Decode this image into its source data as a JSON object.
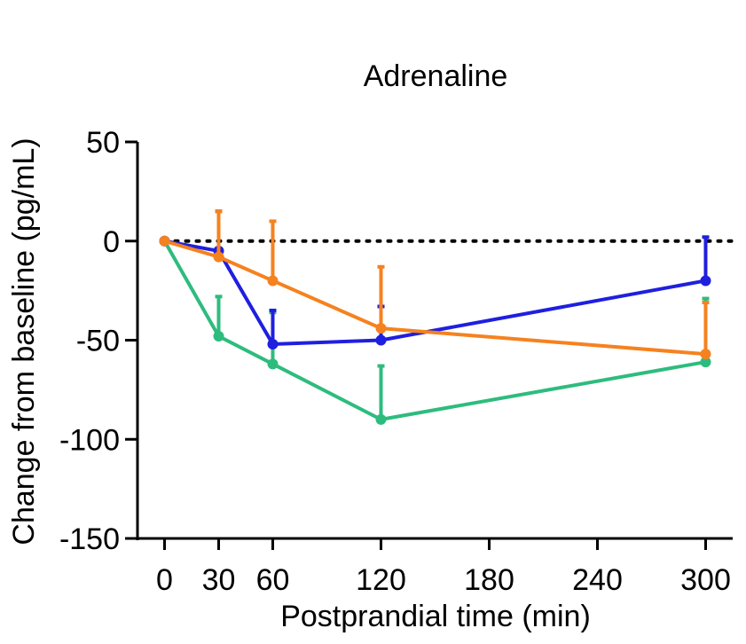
{
  "chart_data": {
    "type": "line",
    "title": "Adrenaline",
    "xlabel": "Postprandial time (min)",
    "ylabel": "Change from baseline (pg/mL)",
    "x": [
      0,
      30,
      60,
      120,
      300
    ],
    "xticks": [
      0,
      30,
      60,
      120,
      180,
      240,
      300
    ],
    "yticks": [
      50,
      0,
      -50,
      -100,
      -150
    ],
    "ytick_labels": [
      "50",
      "0",
      "-50",
      "-100",
      "-150"
    ],
    "xlim": [
      -15,
      315
    ],
    "ylim": [
      -150,
      50
    ],
    "reference_line": 0,
    "grid": false,
    "series": [
      {
        "color": "#2ebc7e",
        "values": [
          0,
          -48,
          -62,
          -90,
          -61
        ],
        "error": [
          0,
          20,
          26,
          27,
          32
        ]
      },
      {
        "color": "#1f1fe0",
        "values": [
          0,
          -5,
          -52,
          -50,
          -20
        ],
        "error": [
          0,
          20,
          17,
          17,
          22
        ]
      },
      {
        "color": "#f5821f",
        "values": [
          0,
          -8,
          -20,
          -44,
          -57
        ],
        "error": [
          0,
          23,
          30,
          31,
          26
        ]
      }
    ]
  }
}
